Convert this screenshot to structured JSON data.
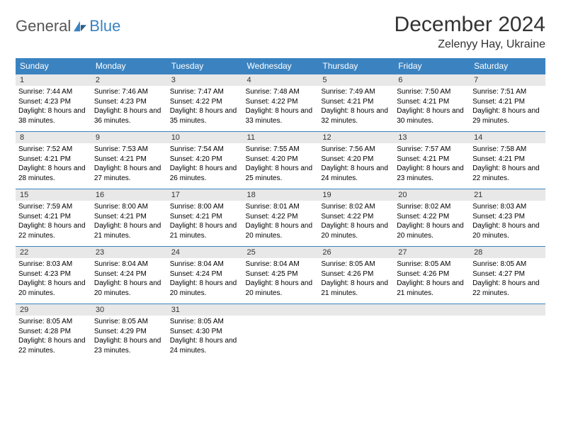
{
  "logo": {
    "general": "General",
    "blue": "Blue"
  },
  "header": {
    "title": "December 2024",
    "location": "Zelenyy Hay, Ukraine"
  },
  "colors": {
    "header_bg": "#3b83c0",
    "header_text": "#ffffff",
    "daynum_bg": "#e8e8e8",
    "row_border": "#3b83c0",
    "page_bg": "#ffffff"
  },
  "dayNames": [
    "Sunday",
    "Monday",
    "Tuesday",
    "Wednesday",
    "Thursday",
    "Friday",
    "Saturday"
  ],
  "days": [
    {
      "n": "1",
      "sunrise": "7:44 AM",
      "sunset": "4:23 PM",
      "daylight": "8 hours and 38 minutes."
    },
    {
      "n": "2",
      "sunrise": "7:46 AM",
      "sunset": "4:23 PM",
      "daylight": "8 hours and 36 minutes."
    },
    {
      "n": "3",
      "sunrise": "7:47 AM",
      "sunset": "4:22 PM",
      "daylight": "8 hours and 35 minutes."
    },
    {
      "n": "4",
      "sunrise": "7:48 AM",
      "sunset": "4:22 PM",
      "daylight": "8 hours and 33 minutes."
    },
    {
      "n": "5",
      "sunrise": "7:49 AM",
      "sunset": "4:21 PM",
      "daylight": "8 hours and 32 minutes."
    },
    {
      "n": "6",
      "sunrise": "7:50 AM",
      "sunset": "4:21 PM",
      "daylight": "8 hours and 30 minutes."
    },
    {
      "n": "7",
      "sunrise": "7:51 AM",
      "sunset": "4:21 PM",
      "daylight": "8 hours and 29 minutes."
    },
    {
      "n": "8",
      "sunrise": "7:52 AM",
      "sunset": "4:21 PM",
      "daylight": "8 hours and 28 minutes."
    },
    {
      "n": "9",
      "sunrise": "7:53 AM",
      "sunset": "4:21 PM",
      "daylight": "8 hours and 27 minutes."
    },
    {
      "n": "10",
      "sunrise": "7:54 AM",
      "sunset": "4:20 PM",
      "daylight": "8 hours and 26 minutes."
    },
    {
      "n": "11",
      "sunrise": "7:55 AM",
      "sunset": "4:20 PM",
      "daylight": "8 hours and 25 minutes."
    },
    {
      "n": "12",
      "sunrise": "7:56 AM",
      "sunset": "4:20 PM",
      "daylight": "8 hours and 24 minutes."
    },
    {
      "n": "13",
      "sunrise": "7:57 AM",
      "sunset": "4:21 PM",
      "daylight": "8 hours and 23 minutes."
    },
    {
      "n": "14",
      "sunrise": "7:58 AM",
      "sunset": "4:21 PM",
      "daylight": "8 hours and 22 minutes."
    },
    {
      "n": "15",
      "sunrise": "7:59 AM",
      "sunset": "4:21 PM",
      "daylight": "8 hours and 22 minutes."
    },
    {
      "n": "16",
      "sunrise": "8:00 AM",
      "sunset": "4:21 PM",
      "daylight": "8 hours and 21 minutes."
    },
    {
      "n": "17",
      "sunrise": "8:00 AM",
      "sunset": "4:21 PM",
      "daylight": "8 hours and 21 minutes."
    },
    {
      "n": "18",
      "sunrise": "8:01 AM",
      "sunset": "4:22 PM",
      "daylight": "8 hours and 20 minutes."
    },
    {
      "n": "19",
      "sunrise": "8:02 AM",
      "sunset": "4:22 PM",
      "daylight": "8 hours and 20 minutes."
    },
    {
      "n": "20",
      "sunrise": "8:02 AM",
      "sunset": "4:22 PM",
      "daylight": "8 hours and 20 minutes."
    },
    {
      "n": "21",
      "sunrise": "8:03 AM",
      "sunset": "4:23 PM",
      "daylight": "8 hours and 20 minutes."
    },
    {
      "n": "22",
      "sunrise": "8:03 AM",
      "sunset": "4:23 PM",
      "daylight": "8 hours and 20 minutes."
    },
    {
      "n": "23",
      "sunrise": "8:04 AM",
      "sunset": "4:24 PM",
      "daylight": "8 hours and 20 minutes."
    },
    {
      "n": "24",
      "sunrise": "8:04 AM",
      "sunset": "4:24 PM",
      "daylight": "8 hours and 20 minutes."
    },
    {
      "n": "25",
      "sunrise": "8:04 AM",
      "sunset": "4:25 PM",
      "daylight": "8 hours and 20 minutes."
    },
    {
      "n": "26",
      "sunrise": "8:05 AM",
      "sunset": "4:26 PM",
      "daylight": "8 hours and 21 minutes."
    },
    {
      "n": "27",
      "sunrise": "8:05 AM",
      "sunset": "4:26 PM",
      "daylight": "8 hours and 21 minutes."
    },
    {
      "n": "28",
      "sunrise": "8:05 AM",
      "sunset": "4:27 PM",
      "daylight": "8 hours and 22 minutes."
    },
    {
      "n": "29",
      "sunrise": "8:05 AM",
      "sunset": "4:28 PM",
      "daylight": "8 hours and 22 minutes."
    },
    {
      "n": "30",
      "sunrise": "8:05 AM",
      "sunset": "4:29 PM",
      "daylight": "8 hours and 23 minutes."
    },
    {
      "n": "31",
      "sunrise": "8:05 AM",
      "sunset": "4:30 PM",
      "daylight": "8 hours and 24 minutes."
    }
  ],
  "labels": {
    "sunrise": "Sunrise: ",
    "sunset": "Sunset: ",
    "daylight": "Daylight: "
  },
  "layout": {
    "columns": 7,
    "trailingEmpty": 4
  }
}
